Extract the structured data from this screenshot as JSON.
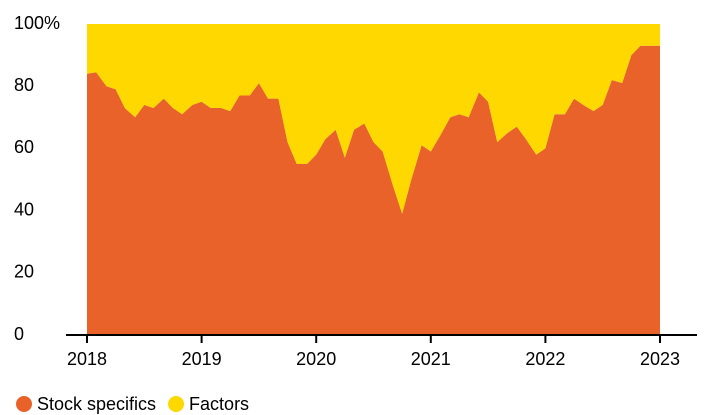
{
  "chart_data": {
    "type": "stacked-area",
    "x": [
      2018,
      2018.08,
      2018.17,
      2018.25,
      2018.33,
      2018.42,
      2018.5,
      2018.58,
      2018.67,
      2018.75,
      2018.83,
      2018.92,
      2019,
      2019.08,
      2019.17,
      2019.25,
      2019.33,
      2019.42,
      2019.5,
      2019.58,
      2019.67,
      2019.75,
      2019.83,
      2019.92,
      2020,
      2020.08,
      2020.17,
      2020.25,
      2020.33,
      2020.42,
      2020.5,
      2020.58,
      2020.67,
      2020.75,
      2020.83,
      2020.92,
      2021,
      2021.08,
      2021.17,
      2021.25,
      2021.33,
      2021.42,
      2021.5,
      2021.58,
      2021.67,
      2021.75,
      2021.83,
      2021.92,
      2022,
      2022.08,
      2022.17,
      2022.25,
      2022.33,
      2022.42,
      2022.5,
      2022.58,
      2022.67,
      2022.75,
      2022.83,
      2022.92,
      2023
    ],
    "series": [
      {
        "name": "Stock specifics",
        "color": "#e8622a",
        "values": [
          84,
          84.5,
          80,
          79,
          73,
          70,
          74,
          73,
          76,
          73,
          71,
          74,
          75,
          73,
          73,
          72,
          77,
          77,
          81,
          76,
          76,
          62,
          55,
          55,
          58,
          63,
          66,
          57,
          66,
          68,
          62,
          59,
          48,
          39,
          50,
          61,
          59,
          64,
          70,
          71,
          70,
          78,
          75,
          62,
          65,
          67,
          63,
          58,
          60,
          71,
          71,
          76,
          74,
          72,
          74,
          82,
          81,
          90,
          93,
          93,
          93
        ]
      },
      {
        "name": "Factors",
        "color": "#ffd800",
        "values": [
          16,
          15.5,
          20,
          21,
          27,
          30,
          26,
          27,
          24,
          27,
          29,
          26,
          25,
          27,
          27,
          28,
          23,
          23,
          19,
          24,
          24,
          38,
          45,
          45,
          42,
          37,
          34,
          43,
          34,
          32,
          38,
          41,
          52,
          61,
          50,
          39,
          41,
          36,
          30,
          29,
          30,
          22,
          25,
          38,
          35,
          33,
          37,
          42,
          40,
          29,
          29,
          24,
          26,
          28,
          26,
          18,
          19,
          10,
          7,
          7,
          7
        ]
      }
    ],
    "xlim": [
      2018,
      2023
    ],
    "xticks": [
      2018,
      2019,
      2020,
      2021,
      2022,
      2023
    ],
    "ylim": [
      0,
      100
    ],
    "yticks": [
      0,
      20,
      40,
      60,
      80,
      {
        "value": 100,
        "label": "100%"
      }
    ]
  }
}
